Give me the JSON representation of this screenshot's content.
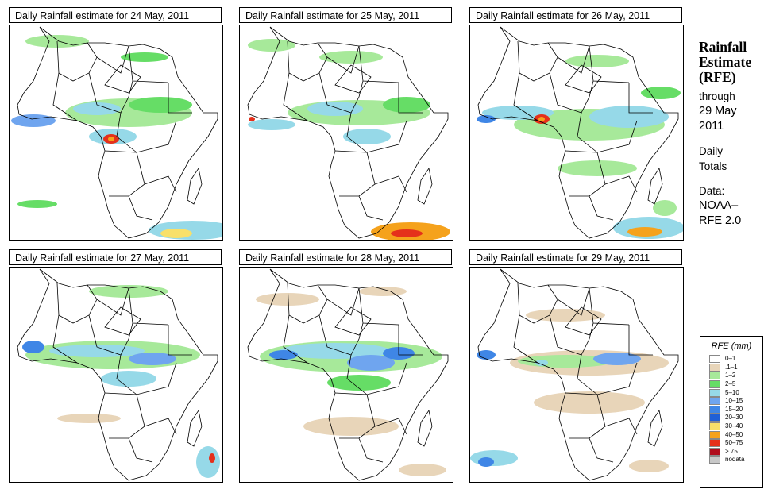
{
  "panels": [
    {
      "title": "Daily Rainfall estimate for  24 May, 2011"
    },
    {
      "title": "Daily Rainfall estimate for  25 May, 2011"
    },
    {
      "title": "Daily Rainfall estimate for  26 May, 2011"
    },
    {
      "title": "Daily Rainfall estimate for  27 May, 2011"
    },
    {
      "title": "Daily Rainfall estimate for  28 May, 2011"
    },
    {
      "title": "Daily Rainfall estimate for  29 May, 2011"
    }
  ],
  "sidebar": {
    "title_line1": "Rainfall",
    "title_line2": "Estimate",
    "title_line3": "(RFE)",
    "through": "through",
    "date_line1": "29 May",
    "date_line2": "2011",
    "daily_line1": "Daily",
    "daily_line2": "Totals",
    "data_line1": "Data:",
    "data_line2": "NOAA–",
    "data_line3": "RFE 2.0"
  },
  "legend": {
    "title": "RFE (mm)",
    "items": [
      {
        "label": "0–1",
        "color": "#ffffff"
      },
      {
        "label": ".1–1",
        "color": "#e8d5b9"
      },
      {
        "label": "1–2",
        "color": "#a7e99a"
      },
      {
        "label": "2–5",
        "color": "#66dd66"
      },
      {
        "label": "5–10",
        "color": "#96d9e8"
      },
      {
        "label": "10–15",
        "color": "#6fa5ef"
      },
      {
        "label": "15–20",
        "color": "#3f86e6"
      },
      {
        "label": "20–30",
        "color": "#1f5fd6"
      },
      {
        "label": "30–40",
        "color": "#f8e06a"
      },
      {
        "label": "40–50",
        "color": "#f5a21c"
      },
      {
        "label": "50–75",
        "color": "#e5301b"
      },
      {
        "label": "> 75",
        "color": "#b00c1c"
      },
      {
        "label": "nodata",
        "color": "#c8c8c8"
      }
    ]
  }
}
